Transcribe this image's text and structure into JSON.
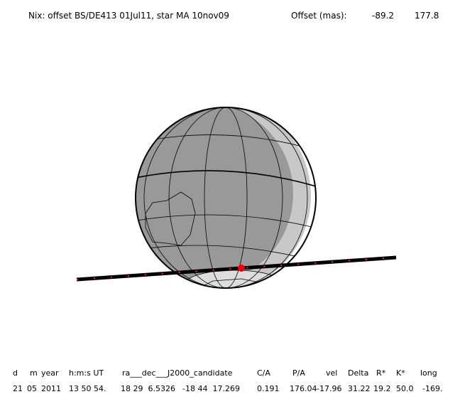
{
  "header": {
    "title": "Nix: offset BS/DE413 01Jul11, star MA 10nov09",
    "offset_label": "Offset (mas):",
    "offset_values": [
      "-89.2",
      "177.8"
    ]
  },
  "table": {
    "headers": [
      "d",
      "m",
      "year",
      "h:m:s UT",
      "ra___dec___J2000_candidate",
      "C/A",
      "P/A",
      "vel",
      "Delta",
      "R*",
      "K*",
      "long"
    ],
    "row": [
      "21",
      "05",
      "2011",
      "13 50 54.",
      "18 29  6.5326",
      "-18 44  17.269",
      "0.191",
      "176.04",
      "-17.96",
      "31.22",
      "19.2",
      "50.0",
      "-169."
    ]
  }
}
